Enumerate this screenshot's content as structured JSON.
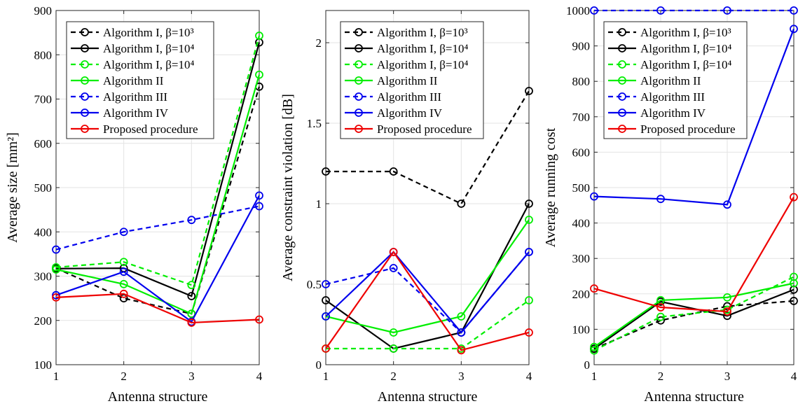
{
  "chart_data": [
    {
      "type": "line",
      "xlabel": "Antenna structure",
      "ylabel": "Average size [mm²]",
      "x": [
        1,
        2,
        3,
        4
      ],
      "xticks": [
        "1",
        "2",
        "3",
        "4"
      ],
      "ylim": [
        100,
        900
      ],
      "yticks": [
        "100",
        "200",
        "300",
        "400",
        "500",
        "600",
        "700",
        "800",
        "900"
      ],
      "grid": true,
      "legend_position": "top-left",
      "series": [
        {
          "name": "Algorithm I, β=10³",
          "color": "#000000",
          "dash": true,
          "values": [
            318,
            250,
            215,
            728
          ]
        },
        {
          "name": "Algorithm I, β=10⁴",
          "color": "#000000",
          "dash": false,
          "values": [
            317,
            318,
            255,
            828
          ]
        },
        {
          "name": "Algorithm I, β=10⁴",
          "color": "#00ee00",
          "dash": true,
          "values": [
            320,
            332,
            280,
            843
          ]
        },
        {
          "name": "Algorithm II",
          "color": "#00ee00",
          "dash": false,
          "values": [
            315,
            282,
            215,
            755
          ]
        },
        {
          "name": "Algorithm III",
          "color": "#0000ee",
          "dash": true,
          "values": [
            360,
            400,
            427,
            458
          ]
        },
        {
          "name": "Algorithm IV",
          "color": "#0000ee",
          "dash": false,
          "values": [
            257,
            310,
            197,
            482
          ]
        },
        {
          "name": "Proposed procedure",
          "color": "#ee0000",
          "dash": false,
          "values": [
            252,
            260,
            195,
            202
          ]
        }
      ]
    },
    {
      "type": "line",
      "xlabel": "Antenna structure",
      "ylabel": "Average constraint violation [dB]",
      "x": [
        1,
        2,
        3,
        4
      ],
      "xticks": [
        "1",
        "2",
        "3",
        "4"
      ],
      "ylim": [
        0,
        2.2
      ],
      "yticks": [
        "0",
        "0.5",
        "1",
        "1.5",
        "2"
      ],
      "grid": true,
      "legend_position": "top-right",
      "series": [
        {
          "name": "Algorithm I, β=10³",
          "color": "#000000",
          "dash": true,
          "values": [
            1.2,
            1.2,
            1.0,
            1.7
          ]
        },
        {
          "name": "Algorithm I, β=10⁴",
          "color": "#000000",
          "dash": false,
          "values": [
            0.4,
            0.1,
            0.2,
            1.0
          ]
        },
        {
          "name": "Algorithm I, β=10⁴",
          "color": "#00ee00",
          "dash": true,
          "values": [
            0.1,
            0.1,
            0.1,
            0.4
          ]
        },
        {
          "name": "Algorithm II",
          "color": "#00ee00",
          "dash": false,
          "values": [
            0.3,
            0.2,
            0.3,
            0.9
          ]
        },
        {
          "name": "Algorithm III",
          "color": "#0000ee",
          "dash": true,
          "values": [
            0.5,
            0.6,
            0.2,
            0.7
          ]
        },
        {
          "name": "Algorithm IV",
          "color": "#0000ee",
          "dash": false,
          "values": [
            0.3,
            0.7,
            0.2,
            0.7
          ]
        },
        {
          "name": "Proposed procedure",
          "color": "#ee0000",
          "dash": false,
          "values": [
            0.1,
            0.7,
            0.09,
            0.2
          ]
        }
      ]
    },
    {
      "type": "line",
      "xlabel": "Antenna structure",
      "ylabel": "Average running cost",
      "x": [
        1,
        2,
        3,
        4
      ],
      "xticks": [
        "1",
        "2",
        "3",
        "4"
      ],
      "ylim": [
        0,
        1000
      ],
      "yticks": [
        "0",
        "100",
        "200",
        "300",
        "400",
        "500",
        "600",
        "700",
        "800",
        "900",
        "1000"
      ],
      "grid": true,
      "legend_position": "top-right",
      "series": [
        {
          "name": "Algorithm I, β=10³",
          "color": "#000000",
          "dash": true,
          "values": [
            45,
            125,
            165,
            180
          ]
        },
        {
          "name": "Algorithm I, β=10⁴",
          "color": "#000000",
          "dash": false,
          "values": [
            45,
            178,
            138,
            212
          ]
        },
        {
          "name": "Algorithm I, β=10⁴",
          "color": "#00ee00",
          "dash": true,
          "values": [
            40,
            135,
            155,
            248
          ]
        },
        {
          "name": "Algorithm II",
          "color": "#00ee00",
          "dash": false,
          "values": [
            50,
            182,
            190,
            230
          ]
        },
        {
          "name": "Algorithm III",
          "color": "#0000ee",
          "dash": true,
          "values": [
            1000,
            1000,
            1000,
            1000
          ]
        },
        {
          "name": "Algorithm IV",
          "color": "#0000ee",
          "dash": false,
          "values": [
            475,
            468,
            452,
            948
          ]
        },
        {
          "name": "Proposed procedure",
          "color": "#ee0000",
          "dash": false,
          "values": [
            215,
            162,
            150,
            473
          ]
        }
      ]
    }
  ]
}
